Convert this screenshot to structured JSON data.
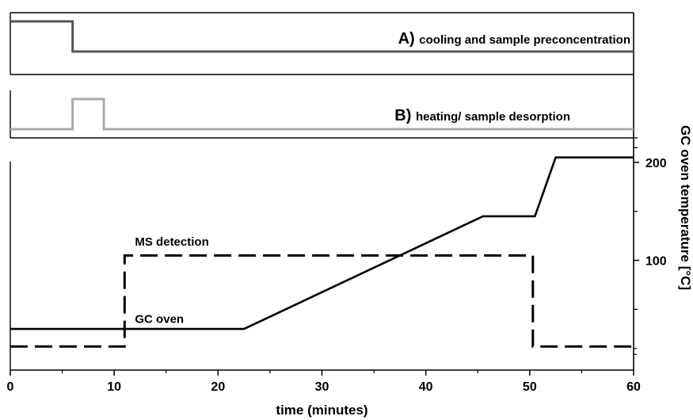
{
  "chart_data": [
    {
      "panel": "A",
      "type": "line",
      "title_letter": "A)",
      "title_text": "cooling and sample preconcentration",
      "xlim": [
        0,
        60
      ],
      "ylim": [
        0,
        1
      ],
      "color": "#555555",
      "series": [
        {
          "x": [
            0,
            6,
            6,
            60
          ],
          "y": [
            1,
            1,
            0,
            0
          ]
        }
      ]
    },
    {
      "panel": "B",
      "type": "line",
      "title_letter": "B)",
      "title_text": "heating/ sample desorption",
      "xlim": [
        0,
        60
      ],
      "ylim": [
        0,
        1
      ],
      "color": "#aaaaaa",
      "series": [
        {
          "x": [
            0,
            6,
            6,
            9,
            9,
            60
          ],
          "y": [
            0,
            0,
            1,
            1,
            0,
            0
          ]
        }
      ]
    },
    {
      "panel": "C",
      "type": "line",
      "xlabel": "time (minutes)",
      "ylabel": "GC oven temperature [°C]",
      "xlim": [
        0,
        60
      ],
      "ylim": [
        -12,
        225
      ],
      "x_ticks": [
        0,
        10,
        20,
        30,
        40,
        50,
        60
      ],
      "y_ticks_labeled": [
        100,
        200
      ],
      "y_ticks_minor": [
        50,
        150
      ],
      "y_ticks_top_panels": [
        215,
        225
      ],
      "series": [
        {
          "name": "GC oven",
          "style": "solid",
          "x": [
            0,
            22.5,
            45.5,
            50.5,
            52.5,
            60
          ],
          "y": [
            30,
            30,
            145,
            145,
            205,
            205
          ]
        },
        {
          "name": "MS detection",
          "style": "dashed",
          "x": [
            0,
            11,
            11,
            50.3,
            50.3,
            60
          ],
          "y": [
            12,
            12,
            105,
            105,
            12,
            12
          ]
        }
      ],
      "annotations": [
        {
          "text": "MS detection",
          "x": 12,
          "y": 115
        },
        {
          "text": "GC oven",
          "x": 12,
          "y": 36
        }
      ]
    }
  ]
}
